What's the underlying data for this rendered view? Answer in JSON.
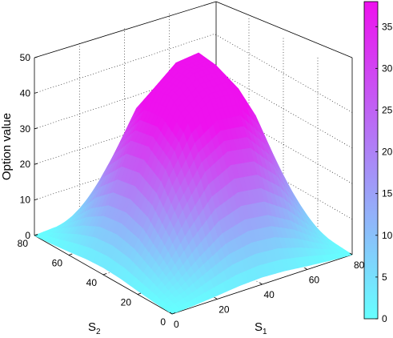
{
  "chart_data": {
    "type": "surface",
    "title": "",
    "xlabel": "S1",
    "ylabel": "S2",
    "zlabel": "Option value",
    "xlabel_main": "S",
    "xlabel_sub": "1",
    "ylabel_main": "S",
    "ylabel_sub": "2",
    "xlim": [
      0,
      80
    ],
    "ylim": [
      0,
      80
    ],
    "zlim": [
      0,
      50
    ],
    "xticks": [
      "0",
      "20",
      "40",
      "60",
      "80"
    ],
    "yticks": [
      "0",
      "20",
      "40",
      "60",
      "80"
    ],
    "zticks": [
      "0",
      "10",
      "20",
      "30",
      "40",
      "50"
    ],
    "grid": true,
    "colormap": "cool",
    "colormap_start": "#66ffff",
    "colormap_end": "#ee11ee",
    "colorbar": {
      "placement": "right",
      "range": [
        0,
        38
      ],
      "ticks": [
        "0",
        "5",
        "10",
        "15",
        "20",
        "25",
        "30",
        "35"
      ]
    },
    "surface_samples": {
      "S1": [
        0,
        10,
        20,
        30,
        40,
        50,
        60,
        70,
        80
      ],
      "S2": [
        0,
        10,
        20,
        30,
        40,
        50,
        60,
        70,
        80
      ],
      "value_grid": [
        [
          0,
          0.4,
          1,
          1.7,
          2,
          1.7,
          1,
          0.4,
          0
        ],
        [
          0.4,
          4.1,
          9.1,
          13.6,
          15.4,
          14.6,
          11,
          5.6,
          0.4
        ],
        [
          1,
          9.1,
          19.4,
          28.1,
          31.8,
          30.7,
          24,
          12.6,
          1
        ],
        [
          1.7,
          13.6,
          28.1,
          39,
          43.7,
          43.2,
          35,
          18.9,
          1.7
        ],
        [
          2,
          15.4,
          31.8,
          43.7,
          48.2,
          48.5,
          39.8,
          21.7,
          2
        ],
        [
          1.7,
          14.6,
          30.7,
          43.2,
          48.5,
          49.2,
          41.4,
          22.9,
          1.7
        ],
        [
          1,
          11,
          24,
          35,
          39.8,
          41.4,
          35,
          19.6,
          1
        ],
        [
          0.4,
          5.6,
          12.6,
          18.9,
          21.7,
          22.9,
          19.6,
          11.1,
          0.4
        ],
        [
          0,
          0.4,
          1,
          1.7,
          2,
          1.7,
          1,
          0.4,
          0
        ]
      ]
    }
  }
}
